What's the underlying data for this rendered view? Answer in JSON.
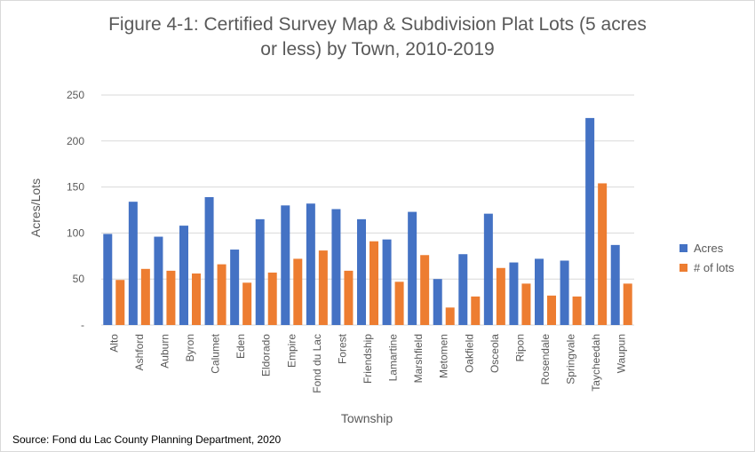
{
  "chart_data": {
    "type": "bar",
    "title_line1": "Figure 4-1: Certified Survey Map & Subdivision Plat Lots (5 acres",
    "title_line2": "or less) by Town, 2010-2019",
    "xlabel": "Township",
    "ylabel": "Acres/Lots",
    "ylim": [
      0,
      250
    ],
    "yticks": [
      "-",
      "50",
      "100",
      "150",
      "200",
      "250"
    ],
    "grid": true,
    "legend_position": "right",
    "categories": [
      "Alto",
      "Ashford",
      "Auburn",
      "Byron",
      "Calumet",
      "Eden",
      "Eldorado",
      "Empire",
      "Fond du Lac",
      "Forest",
      "Friendship",
      "Lamartine",
      "Marshfield",
      "Metomen",
      "Oakfield",
      "Osceola",
      "Ripon",
      "Rosendale",
      "Springvale",
      "Taycheedah",
      "Waupun"
    ],
    "series": [
      {
        "name": "Acres",
        "color": "#4472C4",
        "values": [
          99,
          134,
          96,
          108,
          139,
          82,
          115,
          130,
          132,
          126,
          115,
          93,
          123,
          50,
          77,
          121,
          68,
          72,
          70,
          225,
          87
        ]
      },
      {
        "name": "# of lots",
        "color": "#ED7D31",
        "values": [
          49,
          61,
          59,
          56,
          66,
          46,
          57,
          72,
          81,
          59,
          91,
          47,
          76,
          19,
          31,
          62,
          45,
          32,
          31,
          154,
          45
        ]
      }
    ]
  },
  "source_note": "Source: Fond du Lac County Planning Department, 2020"
}
